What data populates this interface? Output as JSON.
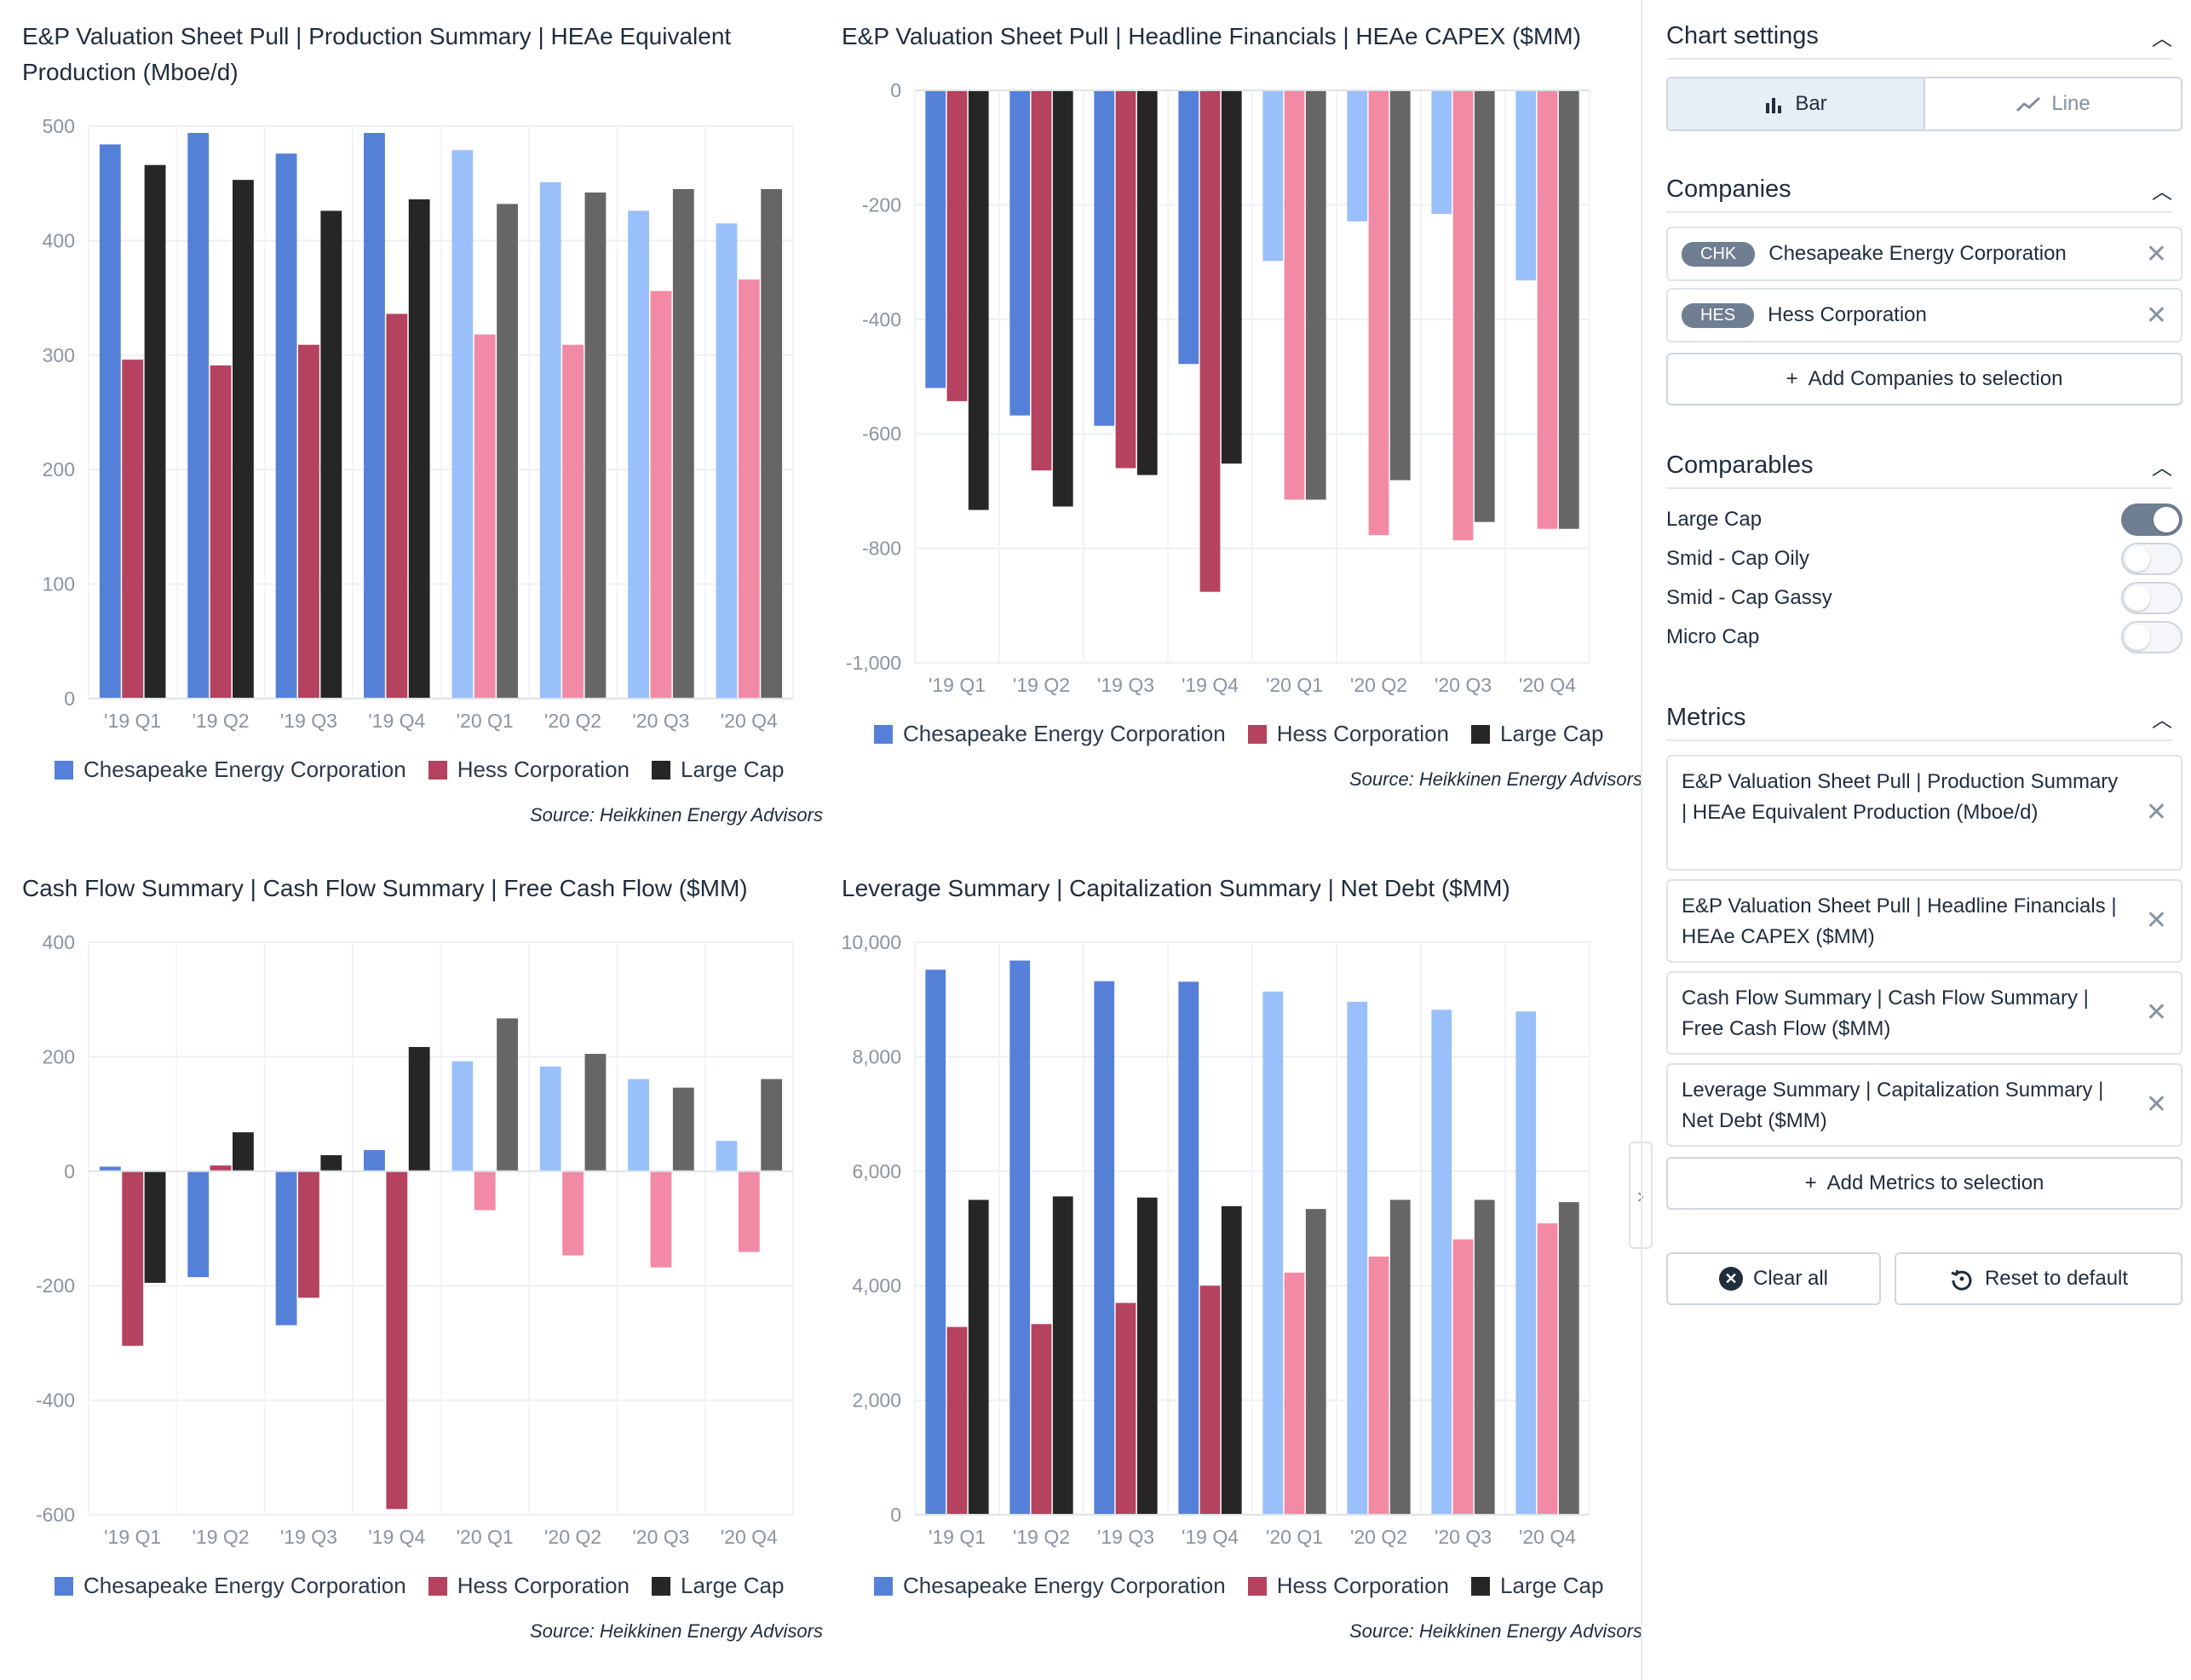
{
  "colors": {
    "chk_2019": "#5580d8",
    "hes_2019": "#b5425f",
    "lc_2019": "#262626",
    "chk_2020": "#99c0fb",
    "hes_2020": "#f38aa5",
    "lc_2020": "#666666"
  },
  "legend": {
    "chk": "Chesapeake Energy Corporation",
    "hes": "Hess Corporation",
    "lc": "Large Cap"
  },
  "source": "Source: Heikkinen Energy Advisors",
  "chart_data": [
    {
      "type": "bar",
      "title": "E&P Valuation Sheet Pull | Production Summary | HEAe Equivalent Production (Mboe/d)",
      "categories": [
        "'19 Q1",
        "'19 Q2",
        "'19 Q3",
        "'19 Q4",
        "'20 Q1",
        "'20 Q2",
        "'20 Q3",
        "'20 Q4"
      ],
      "series": [
        {
          "name": "Chesapeake Energy Corporation",
          "values": [
            484,
            494,
            476,
            494,
            479,
            451,
            426,
            415
          ]
        },
        {
          "name": "Hess Corporation",
          "values": [
            296,
            291,
            309,
            336,
            318,
            309,
            356,
            366
          ]
        },
        {
          "name": "Large Cap",
          "values": [
            466,
            453,
            426,
            436,
            432,
            442,
            445,
            445
          ]
        }
      ],
      "ylim": [
        0,
        500
      ],
      "yticks": [
        "0",
        "100",
        "200",
        "300",
        "400",
        "500"
      ],
      "grid": true,
      "legend_position": "bottom"
    },
    {
      "type": "bar",
      "title": "E&P Valuation Sheet Pull | Headline Financials | HEAe CAPEX ($MM)",
      "categories": [
        "'19 Q1",
        "'19 Q2",
        "'19 Q3",
        "'19 Q4",
        "'20 Q1",
        "'20 Q2",
        "'20 Q3",
        "'20 Q4"
      ],
      "series": [
        {
          "name": "Chesapeake Energy Corporation",
          "values": [
            -520,
            -568,
            -586,
            -478,
            -298,
            -229,
            -216,
            -332
          ]
        },
        {
          "name": "Hess Corporation",
          "values": [
            -543,
            -664,
            -660,
            -876,
            -715,
            -777,
            -786,
            -766
          ]
        },
        {
          "name": "Large Cap",
          "values": [
            -733,
            -727,
            -672,
            -652,
            -715,
            -681,
            -754,
            -766
          ]
        }
      ],
      "ylim": [
        -1000,
        0
      ],
      "yticks": [
        "0",
        "-200",
        "-400",
        "-600",
        "-800",
        "-1,000"
      ],
      "grid": true,
      "legend_position": "bottom"
    },
    {
      "type": "bar",
      "title": "Cash Flow Summary | Cash Flow Summary | Free Cash Flow ($MM)",
      "categories": [
        "'19 Q1",
        "'19 Q2",
        "'19 Q3",
        "'19 Q4",
        "'20 Q1",
        "'20 Q2",
        "'20 Q3",
        "'20 Q4"
      ],
      "series": [
        {
          "name": "Chesapeake Energy Corporation",
          "values": [
            8,
            -185,
            -269,
            37,
            192,
            183,
            161,
            53
          ]
        },
        {
          "name": "Hess Corporation",
          "values": [
            -305,
            10,
            -221,
            -590,
            -68,
            -147,
            -168,
            -141
          ]
        },
        {
          "name": "Large Cap",
          "values": [
            -195,
            68,
            28,
            217,
            267,
            205,
            146,
            161
          ]
        }
      ],
      "ylim": [
        -600,
        400
      ],
      "yticks": [
        "400",
        "200",
        "0",
        "-200",
        "-400",
        "-600"
      ],
      "grid": true,
      "legend_position": "bottom"
    },
    {
      "type": "bar",
      "title": "Leverage Summary | Capitalization Summary | Net Debt ($MM)",
      "categories": [
        "'19 Q1",
        "'19 Q2",
        "'19 Q3",
        "'19 Q4",
        "'20 Q1",
        "'20 Q2",
        "'20 Q3",
        "'20 Q4"
      ],
      "series": [
        {
          "name": "Chesapeake Energy Corporation",
          "values": [
            9520,
            9680,
            9320,
            9310,
            9140,
            8960,
            8820,
            8790
          ]
        },
        {
          "name": "Hess Corporation",
          "values": [
            3280,
            3330,
            3700,
            4000,
            4230,
            4510,
            4810,
            5090
          ]
        },
        {
          "name": "Large Cap",
          "values": [
            5500,
            5560,
            5540,
            5390,
            5340,
            5500,
            5500,
            5460
          ]
        }
      ],
      "ylim": [
        0,
        10000
      ],
      "yticks": [
        "10,000",
        "8,000",
        "6,000",
        "4,000",
        "2,000",
        "0"
      ],
      "grid": true,
      "legend_position": "bottom"
    }
  ],
  "sidebar": {
    "chart_settings": {
      "title": "Chart settings",
      "bar_label": "Bar",
      "line_label": "Line",
      "selected": "Bar"
    },
    "companies": {
      "title": "Companies",
      "items": [
        {
          "ticker": "CHK",
          "name": "Chesapeake Energy Corporation"
        },
        {
          "ticker": "HES",
          "name": "Hess Corporation"
        }
      ],
      "add_label": "Add Companies to selection"
    },
    "comparables": {
      "title": "Comparables",
      "items": [
        {
          "label": "Large Cap",
          "on": true
        },
        {
          "label": "Smid - Cap Oily",
          "on": false
        },
        {
          "label": "Smid - Cap Gassy",
          "on": false
        },
        {
          "label": "Micro Cap",
          "on": false
        }
      ]
    },
    "metrics": {
      "title": "Metrics",
      "items": [
        "E&P Valuation Sheet Pull | Production Summary | HEAe Equivalent Production (Mboe/d)",
        "E&P Valuation Sheet Pull | Headline Financials | HEAe CAPEX ($MM)",
        "Cash Flow Summary | Cash Flow Summary | Free Cash Flow ($MM)",
        "Leverage Summary | Capitalization Summary | Net Debt ($MM)"
      ],
      "add_label": "Add Metrics to selection"
    },
    "clear_label": "Clear all",
    "reset_label": "Reset to default"
  }
}
